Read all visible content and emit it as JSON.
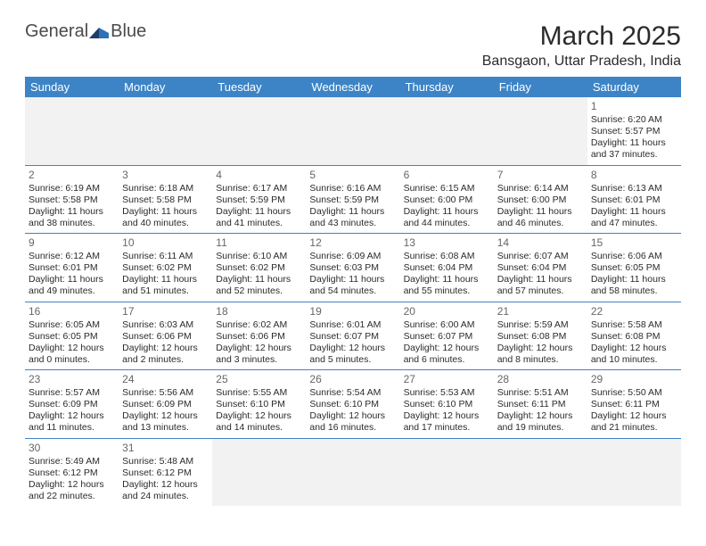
{
  "logo": {
    "text1": "General",
    "text2": "Blue",
    "accent": "#2e71b8",
    "dark": "#1a3e66"
  },
  "title": "March 2025",
  "location": "Bansgaon, Uttar Pradesh, India",
  "header_bg": "#3d84c6",
  "blank_bg": "#f2f2f2",
  "border": "#3d84c6",
  "weekdays": [
    "Sunday",
    "Monday",
    "Tuesday",
    "Wednesday",
    "Thursday",
    "Friday",
    "Saturday"
  ],
  "first_day_col": 6,
  "days": [
    {
      "n": 1,
      "sr": "6:20 AM",
      "ss": "5:57 PM",
      "dl": "11 hours and 37 minutes."
    },
    {
      "n": 2,
      "sr": "6:19 AM",
      "ss": "5:58 PM",
      "dl": "11 hours and 38 minutes."
    },
    {
      "n": 3,
      "sr": "6:18 AM",
      "ss": "5:58 PM",
      "dl": "11 hours and 40 minutes."
    },
    {
      "n": 4,
      "sr": "6:17 AM",
      "ss": "5:59 PM",
      "dl": "11 hours and 41 minutes."
    },
    {
      "n": 5,
      "sr": "6:16 AM",
      "ss": "5:59 PM",
      "dl": "11 hours and 43 minutes."
    },
    {
      "n": 6,
      "sr": "6:15 AM",
      "ss": "6:00 PM",
      "dl": "11 hours and 44 minutes."
    },
    {
      "n": 7,
      "sr": "6:14 AM",
      "ss": "6:00 PM",
      "dl": "11 hours and 46 minutes."
    },
    {
      "n": 8,
      "sr": "6:13 AM",
      "ss": "6:01 PM",
      "dl": "11 hours and 47 minutes."
    },
    {
      "n": 9,
      "sr": "6:12 AM",
      "ss": "6:01 PM",
      "dl": "11 hours and 49 minutes."
    },
    {
      "n": 10,
      "sr": "6:11 AM",
      "ss": "6:02 PM",
      "dl": "11 hours and 51 minutes."
    },
    {
      "n": 11,
      "sr": "6:10 AM",
      "ss": "6:02 PM",
      "dl": "11 hours and 52 minutes."
    },
    {
      "n": 12,
      "sr": "6:09 AM",
      "ss": "6:03 PM",
      "dl": "11 hours and 54 minutes."
    },
    {
      "n": 13,
      "sr": "6:08 AM",
      "ss": "6:04 PM",
      "dl": "11 hours and 55 minutes."
    },
    {
      "n": 14,
      "sr": "6:07 AM",
      "ss": "6:04 PM",
      "dl": "11 hours and 57 minutes."
    },
    {
      "n": 15,
      "sr": "6:06 AM",
      "ss": "6:05 PM",
      "dl": "11 hours and 58 minutes."
    },
    {
      "n": 16,
      "sr": "6:05 AM",
      "ss": "6:05 PM",
      "dl": "12 hours and 0 minutes."
    },
    {
      "n": 17,
      "sr": "6:03 AM",
      "ss": "6:06 PM",
      "dl": "12 hours and 2 minutes."
    },
    {
      "n": 18,
      "sr": "6:02 AM",
      "ss": "6:06 PM",
      "dl": "12 hours and 3 minutes."
    },
    {
      "n": 19,
      "sr": "6:01 AM",
      "ss": "6:07 PM",
      "dl": "12 hours and 5 minutes."
    },
    {
      "n": 20,
      "sr": "6:00 AM",
      "ss": "6:07 PM",
      "dl": "12 hours and 6 minutes."
    },
    {
      "n": 21,
      "sr": "5:59 AM",
      "ss": "6:08 PM",
      "dl": "12 hours and 8 minutes."
    },
    {
      "n": 22,
      "sr": "5:58 AM",
      "ss": "6:08 PM",
      "dl": "12 hours and 10 minutes."
    },
    {
      "n": 23,
      "sr": "5:57 AM",
      "ss": "6:09 PM",
      "dl": "12 hours and 11 minutes."
    },
    {
      "n": 24,
      "sr": "5:56 AM",
      "ss": "6:09 PM",
      "dl": "12 hours and 13 minutes."
    },
    {
      "n": 25,
      "sr": "5:55 AM",
      "ss": "6:10 PM",
      "dl": "12 hours and 14 minutes."
    },
    {
      "n": 26,
      "sr": "5:54 AM",
      "ss": "6:10 PM",
      "dl": "12 hours and 16 minutes."
    },
    {
      "n": 27,
      "sr": "5:53 AM",
      "ss": "6:10 PM",
      "dl": "12 hours and 17 minutes."
    },
    {
      "n": 28,
      "sr": "5:51 AM",
      "ss": "6:11 PM",
      "dl": "12 hours and 19 minutes."
    },
    {
      "n": 29,
      "sr": "5:50 AM",
      "ss": "6:11 PM",
      "dl": "12 hours and 21 minutes."
    },
    {
      "n": 30,
      "sr": "5:49 AM",
      "ss": "6:12 PM",
      "dl": "12 hours and 22 minutes."
    },
    {
      "n": 31,
      "sr": "5:48 AM",
      "ss": "6:12 PM",
      "dl": "12 hours and 24 minutes."
    }
  ],
  "labels": {
    "sunrise": "Sunrise: ",
    "sunset": "Sunset: ",
    "daylight": "Daylight: "
  }
}
